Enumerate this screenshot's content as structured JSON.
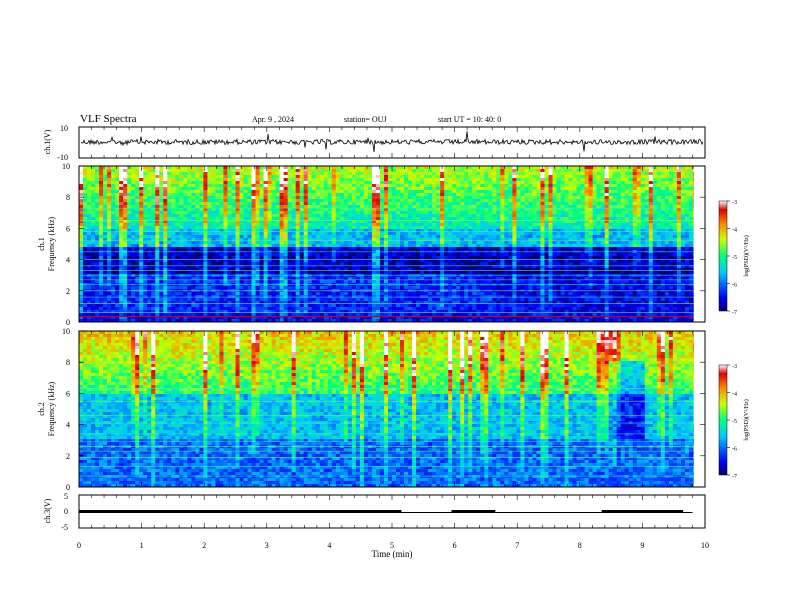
{
  "header": {
    "title": "VLF Spectra",
    "date": "Apr. 9  , 2024",
    "station": "station= OUJ",
    "start": "start  UT  =   10: 40: 0"
  },
  "chart_data": [
    {
      "type": "line",
      "panel": "ch1-waveform",
      "ylabel": "ch.1(V)",
      "ylim": [
        -10,
        10
      ],
      "yticks": [
        "10",
        "-10"
      ],
      "xlim": [
        0,
        10
      ],
      "note": "dense noise trace around 0 V with occasional spikes"
    },
    {
      "type": "heatmap",
      "panel": "ch1-spectrogram",
      "ylabel": "ch.1\nFrequency (kHz)",
      "xlim": [
        0,
        10
      ],
      "ylim": [
        0,
        10
      ],
      "yticks": [
        "0",
        "2",
        "4",
        "6",
        "8",
        "10"
      ],
      "colorbar": {
        "label": "log(PSD)(V²/Hz)",
        "range": [
          -7,
          -3
        ],
        "ticks": [
          "-3",
          "-4",
          "-5",
          "-6",
          "-7"
        ]
      }
    },
    {
      "type": "heatmap",
      "panel": "ch2-spectrogram",
      "ylabel": "ch.2\nFrequency (kHz)",
      "xlim": [
        0,
        10
      ],
      "ylim": [
        0,
        10
      ],
      "yticks": [
        "0",
        "2",
        "4",
        "6",
        "8",
        "10"
      ],
      "colorbar": {
        "label": "log(PSD)(V²/Hz)",
        "range": [
          -7,
          -3
        ],
        "ticks": [
          "-3",
          "-4",
          "-5",
          "-6",
          "-7"
        ]
      }
    },
    {
      "type": "line",
      "panel": "ch3-signal",
      "ylabel": "ch.3(V)",
      "ylim": [
        -5,
        5
      ],
      "yticks": [
        "5",
        "0",
        "-5"
      ],
      "xlim": [
        0,
        10
      ],
      "xlabel": "Time  (min)",
      "xticks": [
        "0",
        "1",
        "2",
        "3",
        "4",
        "5",
        "6",
        "7",
        "8",
        "9",
        "10"
      ],
      "segments": [
        {
          "x": [
            0,
            5.15
          ],
          "y": 0
        },
        {
          "x": [
            5.15,
            5.95
          ],
          "y": -0.4
        },
        {
          "x": [
            5.95,
            6.65
          ],
          "y": 0
        },
        {
          "x": [
            6.65,
            8.35
          ],
          "y": -0.4
        },
        {
          "x": [
            8.35,
            9.65
          ],
          "y": 0
        },
        {
          "x": [
            9.65,
            9.8
          ],
          "y": -0.4
        }
      ]
    }
  ]
}
